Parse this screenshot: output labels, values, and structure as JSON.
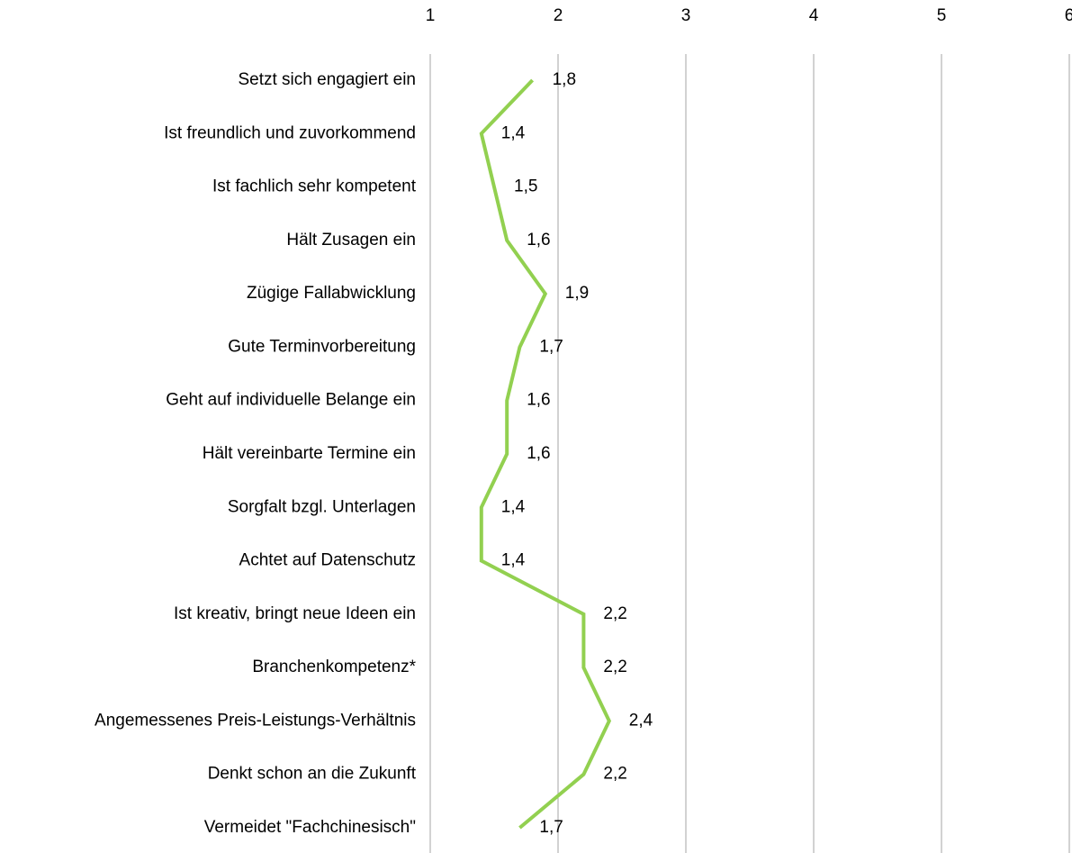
{
  "chart_data": {
    "type": "line",
    "orientation": "horizontal",
    "categories": [
      "Setzt sich engagiert ein",
      "Ist freundlich und zuvorkommend",
      "Ist fachlich sehr kompetent",
      "Hält Zusagen ein",
      "Zügige Fallabwicklung",
      "Gute Terminvorbereitung",
      "Geht auf individuelle Belange ein",
      "Hält vereinbarte Termine ein",
      "Sorgfalt bzgl. Unterlagen",
      "Achtet auf Datenschutz",
      "Ist kreativ, bringt neue Ideen ein",
      "Branchenkompetenz*",
      "Angemessenes Preis-Leistungs-Verhältnis",
      "Denkt schon an die Zukunft",
      "Vermeidet \"Fachchinesisch\""
    ],
    "values": [
      1.8,
      1.4,
      1.5,
      1.6,
      1.9,
      1.7,
      1.6,
      1.6,
      1.4,
      1.4,
      2.2,
      2.2,
      2.4,
      2.2,
      1.7
    ],
    "value_labels": [
      "1,8",
      "1,4",
      "1,5",
      "1,6",
      "1,9",
      "1,7",
      "1,6",
      "1,6",
      "1,4",
      "1,4",
      "2,2",
      "2,2",
      "2,4",
      "2,2",
      "1,7"
    ],
    "color": "#92d050",
    "xlim": [
      1,
      6
    ],
    "xticks": [
      1,
      2,
      3,
      4,
      5,
      6
    ],
    "grid": true
  }
}
